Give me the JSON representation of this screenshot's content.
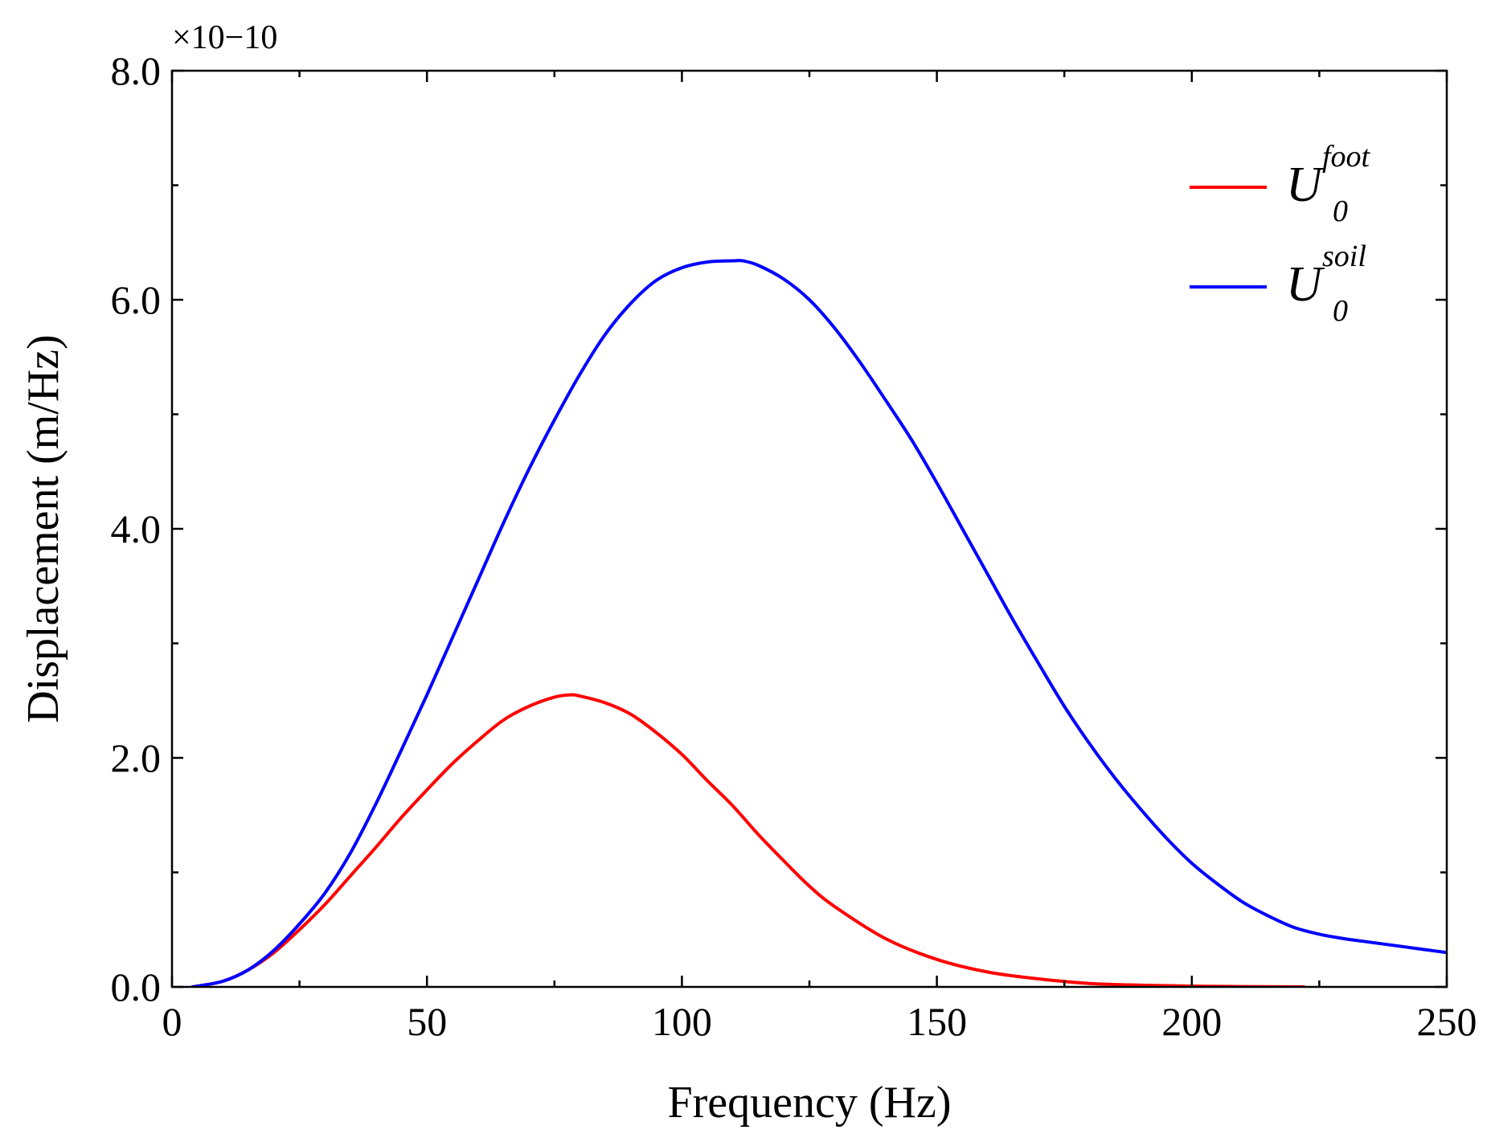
{
  "chart_data": {
    "type": "line",
    "title": "",
    "xlabel": "Frequency (Hz)",
    "ylabel": "Displacement (m/Hz)",
    "y_multiplier": "×10−10",
    "xlim": [
      0,
      250
    ],
    "ylim": [
      0,
      8.0
    ],
    "x_ticks": [
      0,
      50,
      100,
      150,
      200,
      250
    ],
    "x_tick_labels": [
      "0",
      "50",
      "100",
      "150",
      "200",
      "250"
    ],
    "y_ticks": [
      0,
      2,
      4,
      6,
      8
    ],
    "y_tick_labels": [
      "0.0",
      "2.0",
      "4.0",
      "6.0",
      "8.0"
    ],
    "grid": false,
    "legend_position": "top-right",
    "series": [
      {
        "name": "U_0^foot",
        "legend": {
          "base": "U",
          "sup": "foot",
          "sub": "0"
        },
        "color": "#ff0000",
        "x": [
          4,
          10,
          15,
          20,
          25,
          30,
          35,
          40,
          45,
          50,
          55,
          60,
          65,
          70,
          75,
          78,
          80,
          85,
          90,
          95,
          100,
          105,
          110,
          115,
          120,
          125,
          130,
          140,
          150,
          160,
          170,
          180,
          190,
          200,
          210,
          222
        ],
        "y": [
          0.0,
          0.05,
          0.15,
          0.3,
          0.5,
          0.72,
          0.97,
          1.22,
          1.48,
          1.72,
          1.95,
          2.15,
          2.33,
          2.45,
          2.53,
          2.55,
          2.54,
          2.48,
          2.38,
          2.22,
          2.03,
          1.8,
          1.58,
          1.33,
          1.1,
          0.88,
          0.7,
          0.42,
          0.24,
          0.13,
          0.07,
          0.03,
          0.015,
          0.007,
          0.003,
          0.0
        ]
      },
      {
        "name": "U_0^soil",
        "legend": {
          "base": "U",
          "sup": "soil",
          "sub": "0"
        },
        "color": "#0000ff",
        "x": [
          4,
          10,
          15,
          20,
          25,
          30,
          35,
          40,
          45,
          50,
          55,
          60,
          65,
          70,
          75,
          80,
          85,
          90,
          95,
          100,
          105,
          110,
          112,
          115,
          120,
          125,
          130,
          135,
          140,
          145,
          150,
          155,
          160,
          165,
          170,
          175,
          180,
          185,
          190,
          195,
          200,
          205,
          210,
          215,
          220,
          225,
          230,
          235,
          240,
          245,
          250
        ],
        "y": [
          0.0,
          0.05,
          0.15,
          0.32,
          0.55,
          0.82,
          1.17,
          1.6,
          2.07,
          2.55,
          3.05,
          3.55,
          4.05,
          4.52,
          4.95,
          5.35,
          5.7,
          5.97,
          6.17,
          6.28,
          6.33,
          6.34,
          6.34,
          6.3,
          6.18,
          6.0,
          5.75,
          5.45,
          5.12,
          4.78,
          4.4,
          4.0,
          3.6,
          3.2,
          2.82,
          2.45,
          2.12,
          1.82,
          1.55,
          1.3,
          1.08,
          0.9,
          0.74,
          0.62,
          0.52,
          0.46,
          0.42,
          0.39,
          0.36,
          0.33,
          0.3
        ]
      }
    ]
  }
}
